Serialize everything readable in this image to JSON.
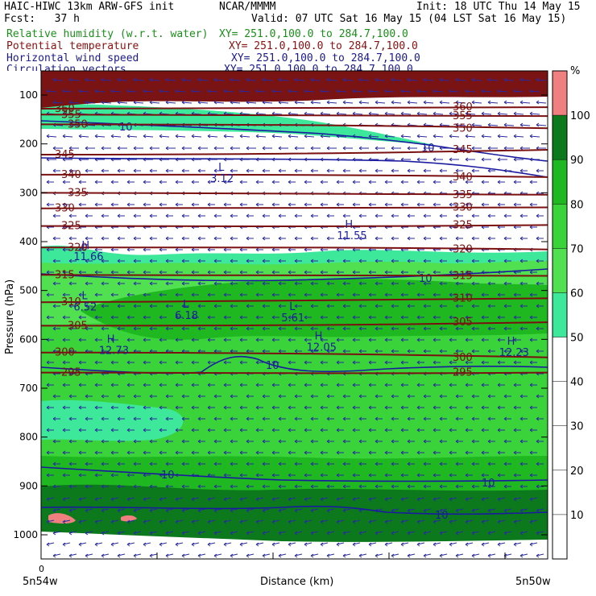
{
  "header": {
    "model": "HAIC-HIWC 13km ARW-GFS init",
    "org": "NCAR/MMMM",
    "init": "Init: 18 UTC Thu 14 May 15",
    "fcst": "Fcst:   37 h",
    "valid": "Valid: 07 UTC Sat 16 May 15 (04 LST Sat 16 May 15)",
    "fields": [
      {
        "name": "Relative humidity (w.r.t. water)",
        "xy": "XY= 251.0,100.0 to 284.7,100.0",
        "color": "#1a8f1a"
      },
      {
        "name": "Potential temperature",
        "xy": "XY= 251.0,100.0 to 284.7,100.0",
        "color": "#8b1010"
      },
      {
        "name": "Horizontal wind speed",
        "xy": "XY= 251.0,100.0 to 284.7,100.0",
        "color": "#1a1a8c"
      },
      {
        "name": "Circulation vectors",
        "xy": "XY= 251.0,100.0 to 284.7,100.0",
        "color": "#1a1a8c"
      }
    ]
  },
  "chart_data": {
    "type": "cross-section",
    "ylabel": "Pressure (hPa)",
    "xlabel": "Distance (km)",
    "y_ticks": [
      100,
      200,
      300,
      400,
      500,
      600,
      700,
      800,
      900,
      1000
    ],
    "ylim": [
      1050,
      50
    ],
    "x_start_label": "0",
    "x_left_label": "5n54w",
    "x_right_label": "5n50w",
    "colorbar": {
      "unit": "%",
      "levels": [
        10,
        20,
        30,
        40,
        50,
        60,
        70,
        80,
        90,
        100
      ],
      "colors": [
        {
          "from": 50,
          "to": 60,
          "color": "#3ee89a"
        },
        {
          "from": 60,
          "to": 70,
          "color": "#50e050"
        },
        {
          "from": 70,
          "to": 80,
          "color": "#3ad43a"
        },
        {
          "from": 80,
          "to": 90,
          "color": "#20b820"
        },
        {
          "from": 90,
          "to": 100,
          "color": "#0c7a1c"
        },
        {
          "from": 100,
          "to": 110,
          "color": "#f08080"
        }
      ]
    },
    "theta_contours": [
      {
        "label": "360",
        "p_left": 128,
        "p_right": 125
      },
      {
        "label": "355",
        "p_left": 140,
        "p_right": 143
      },
      {
        "label": "350",
        "p_left": 160,
        "p_right": 168
      },
      {
        "label": "345",
        "p_left": 222,
        "p_right": 212
      },
      {
        "label": "340",
        "p_left": 263,
        "p_right": 268
      },
      {
        "label": "335",
        "p_left": 300,
        "p_right": 304
      },
      {
        "label": "330",
        "p_left": 332,
        "p_right": 330
      },
      {
        "label": "325",
        "p_left": 368,
        "p_right": 366
      },
      {
        "label": "320",
        "p_left": 412,
        "p_right": 416
      },
      {
        "label": "315",
        "p_left": 468,
        "p_right": 470
      },
      {
        "label": "310",
        "p_left": 524,
        "p_right": 516
      },
      {
        "label": "305",
        "p_left": 572,
        "p_right": 565
      },
      {
        "label": "300",
        "p_left": 627,
        "p_right": 637
      },
      {
        "label": "295",
        "p_left": 668,
        "p_right": 668
      }
    ],
    "wind_contour_label": "10",
    "extrema": [
      {
        "kind": "L",
        "value": "3.12",
        "x": 0.35,
        "p": 255
      },
      {
        "kind": "H",
        "value": "11.55",
        "x": 0.6,
        "p": 372
      },
      {
        "kind": "H",
        "value": "11.66",
        "x": 0.08,
        "p": 415
      },
      {
        "kind": "L",
        "value": "6.52",
        "x": 0.08,
        "p": 518
      },
      {
        "kind": "L",
        "value": "6.18",
        "x": 0.28,
        "p": 535
      },
      {
        "kind": "L",
        "value": "5.61",
        "x": 0.49,
        "p": 540
      },
      {
        "kind": "H",
        "value": "12.73",
        "x": 0.13,
        "p": 607
      },
      {
        "kind": "H",
        "value": "12.05",
        "x": 0.54,
        "p": 600
      },
      {
        "kind": "H",
        "value": "12.23",
        "x": 0.92,
        "p": 611
      }
    ]
  }
}
